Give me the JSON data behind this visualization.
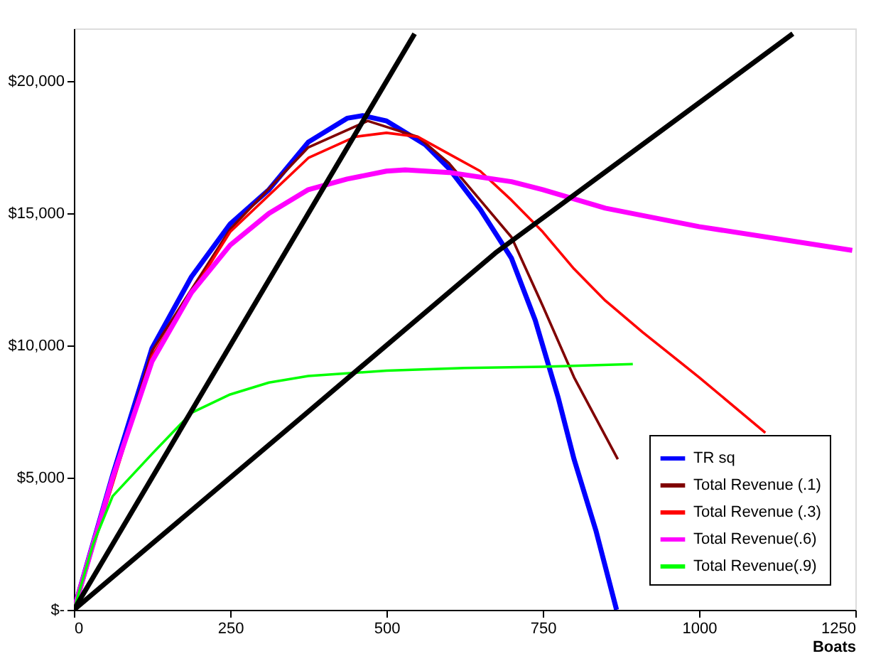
{
  "chart_data": {
    "type": "line",
    "xlabel": "Boats",
    "xlim": [
      0,
      1250
    ],
    "xticks": [
      0,
      250,
      500,
      750,
      1000,
      1250
    ],
    "ylim": [
      0,
      22000
    ],
    "yticks": [
      {
        "value": 0,
        "label": "$-"
      },
      {
        "value": 5000,
        "label": "$5,000"
      },
      {
        "value": 10000,
        "label": "$10,000"
      },
      {
        "value": 15000,
        "label": "$15,000"
      },
      {
        "value": 20000,
        "label": "$20,000"
      }
    ],
    "grid": false,
    "legend": "bottom right",
    "marker": "none",
    "line_style": "solid",
    "series": [
      {
        "name": "TR sq",
        "color": "#0000ff",
        "x": [
          0,
          62,
          125,
          188,
          250,
          312,
          375,
          437,
          462,
          500,
          562,
          600,
          650,
          700,
          738,
          775,
          800,
          835,
          868
        ],
        "values": [
          0,
          5100,
          9900,
          12600,
          14600,
          15900,
          17700,
          18600,
          18700,
          18500,
          17600,
          16700,
          15150,
          13300,
          10950,
          8000,
          5700,
          3000,
          0
        ]
      },
      {
        "name": "Total Revenue (.1)",
        "color": "#800000",
        "x": [
          0,
          125,
          250,
          375,
          470,
          550,
          600,
          650,
          700,
          750,
          800,
          870
        ],
        "values": [
          0,
          9800,
          14400,
          17500,
          18500,
          17900,
          16900,
          15500,
          14100,
          11500,
          8800,
          5700
        ]
      },
      {
        "name": "Total Revenue (.3)",
        "color": "#ff0000",
        "x": [
          0,
          125,
          250,
          375,
          450,
          500,
          550,
          600,
          650,
          700,
          750,
          800,
          850,
          910,
          1000,
          1106
        ],
        "values": [
          0,
          9600,
          14300,
          17100,
          17900,
          18050,
          17900,
          17250,
          16600,
          15500,
          14300,
          12900,
          11700,
          10500,
          8800,
          6700
        ]
      },
      {
        "name": "Total Revenue(.6)",
        "color": "#ff00ff",
        "x": [
          0,
          62,
          125,
          188,
          250,
          312,
          375,
          437,
          500,
          530,
          600,
          700,
          750,
          850,
          1000,
          1245
        ],
        "values": [
          0,
          5000,
          9400,
          12000,
          13800,
          15000,
          15900,
          16300,
          16600,
          16650,
          16550,
          16200,
          15900,
          15200,
          14500,
          13600
        ]
      },
      {
        "name": "Total Revenue(.9)",
        "color": "#00ff00",
        "x": [
          0,
          31,
          62,
          125,
          188,
          250,
          312,
          375,
          500,
          625,
          750,
          894
        ],
        "values": [
          0,
          2500,
          4300,
          5900,
          7450,
          8150,
          8600,
          8850,
          9050,
          9150,
          9200,
          9300
        ]
      },
      {
        "color": "#000000",
        "x": [
          0,
          545
        ],
        "values": [
          0,
          21800
        ]
      },
      {
        "color": "#000000",
        "x": [
          0,
          375,
          674,
          1150
        ],
        "values": [
          0,
          7500,
          13500,
          21800
        ]
      }
    ]
  }
}
